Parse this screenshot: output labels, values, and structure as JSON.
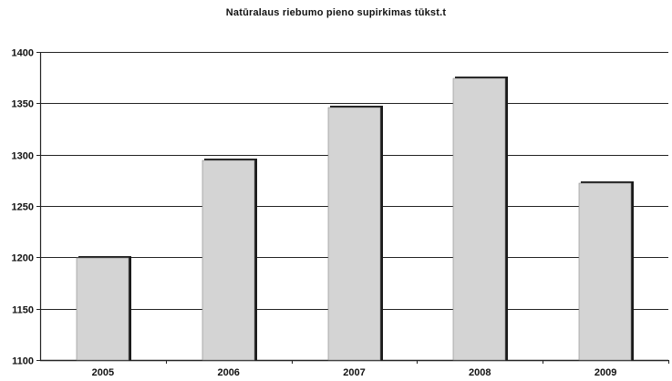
{
  "chart_data": {
    "type": "bar",
    "title": "Natūralaus riebumo pieno supirkimas tūkst.t",
    "xlabel": "",
    "ylabel": "",
    "categories": [
      "2005",
      "2006",
      "2007",
      "2008",
      "2009"
    ],
    "values": [
      1200,
      1295,
      1347,
      1375,
      1273
    ],
    "ylim": [
      1100,
      1400
    ],
    "yticks": [
      1100,
      1150,
      1200,
      1250,
      1300,
      1350,
      1400
    ],
    "grid": true,
    "legend": "none",
    "colors": {
      "bar_fill": "#d4d4d4",
      "bar_shadow": "#1a1a1a",
      "grid": "#222222",
      "axis": "#222222"
    }
  }
}
